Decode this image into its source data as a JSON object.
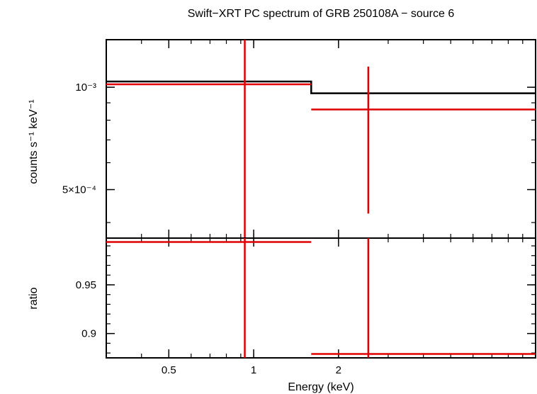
{
  "chart_data": {
    "type": "line",
    "title": "Swift−XRT PC spectrum of GRB 250108A − source 6",
    "xlabel": "Energy (keV)",
    "xscale": "log",
    "xlim": [
      0.3,
      10
    ],
    "colors": {
      "model": "#000000",
      "data": "#e00000",
      "frame": "#000000"
    },
    "panels": [
      {
        "name": "spectrum",
        "ylabel": "counts s⁻¹ keV⁻¹",
        "yscale": "log",
        "ylim": [
          0.00036,
          0.00138
        ],
        "yticks": [
          {
            "value": 0.001,
            "label": "10⁻³"
          },
          {
            "value": 0.0005,
            "label": "5×10⁻⁴"
          }
        ],
        "model_steps": [
          {
            "x0": 0.3,
            "x1": 1.6,
            "y": 0.00104
          },
          {
            "x0": 1.6,
            "x1": 10,
            "y": 0.00096
          }
        ],
        "data_points": [
          {
            "x": 0.93,
            "xerr": [
              0.3,
              1.6
            ],
            "y": 0.00102,
            "yerr": [
              0.00036,
              0.00138
            ]
          },
          {
            "x": 2.55,
            "xerr": [
              1.6,
              10
            ],
            "y": 0.00086,
            "yerr": [
              0.000425,
              0.00115
            ]
          }
        ]
      },
      {
        "name": "ratio",
        "ylabel": "ratio",
        "yscale": "linear",
        "ylim": [
          0.875,
          0.998
        ],
        "yticks": [
          {
            "value": 0.95,
            "label": "0.95"
          },
          {
            "value": 0.9,
            "label": "0.9"
          }
        ],
        "data_points": [
          {
            "x": 0.93,
            "xerr": [
              0.3,
              1.6
            ],
            "y": 0.994,
            "yerr": [
              0.875,
              0.998
            ]
          },
          {
            "x": 2.55,
            "xerr": [
              1.6,
              10
            ],
            "y": 0.879,
            "yerr": [
              0.875,
              0.998
            ]
          }
        ]
      }
    ],
    "xticks": [
      {
        "value": 0.5,
        "label": "0.5"
      },
      {
        "value": 1,
        "label": "1"
      },
      {
        "value": 2,
        "label": "2"
      }
    ]
  }
}
